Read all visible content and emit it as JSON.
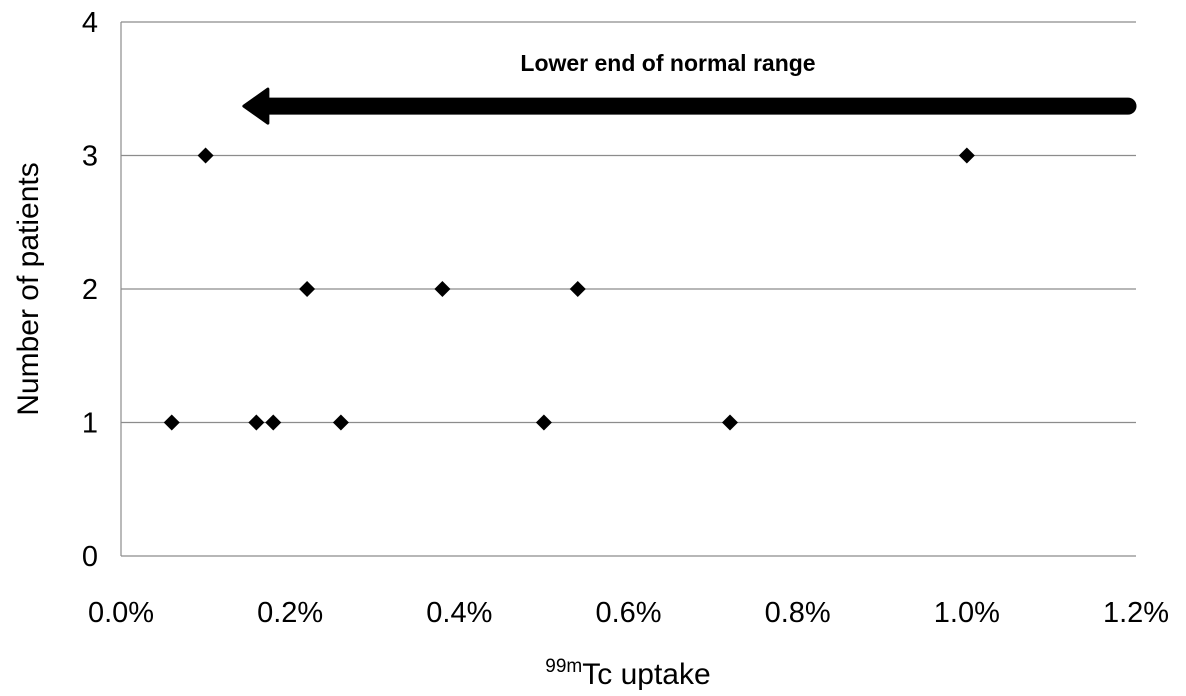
{
  "chart_data": {
    "type": "scatter",
    "xlabel_superscript": "99m",
    "xlabel": "Tc uptake",
    "ylabel": "Number of patients",
    "xlim": [
      0,
      0.012
    ],
    "ylim": [
      0,
      4
    ],
    "x_ticks": [
      "0.0%",
      "0.2%",
      "0.4%",
      "0.6%",
      "0.8%",
      "1.0%",
      "1.2%"
    ],
    "x_tick_values": [
      0,
      0.002,
      0.004,
      0.006,
      0.008,
      0.01,
      0.012
    ],
    "y_ticks": [
      "0",
      "1",
      "2",
      "3",
      "4"
    ],
    "y_tick_values": [
      0,
      1,
      2,
      3,
      4
    ],
    "grid": "horizontal",
    "points": [
      {
        "x": 0.0006,
        "y": 1
      },
      {
        "x": 0.0016,
        "y": 1
      },
      {
        "x": 0.0018,
        "y": 1
      },
      {
        "x": 0.0026,
        "y": 1
      },
      {
        "x": 0.005,
        "y": 1
      },
      {
        "x": 0.0072,
        "y": 1
      },
      {
        "x": 0.0022,
        "y": 2
      },
      {
        "x": 0.0038,
        "y": 2
      },
      {
        "x": 0.0054,
        "y": 2
      },
      {
        "x": 0.001,
        "y": 3
      },
      {
        "x": 0.01,
        "y": 3
      }
    ],
    "annotation": {
      "text": "Lower end of normal range",
      "arrow_from_x": 0.012,
      "arrow_to_x": 0.0015,
      "arrow_y": 3.37,
      "direction": "left"
    },
    "marker": "diamond",
    "marker_color": "#000000"
  }
}
